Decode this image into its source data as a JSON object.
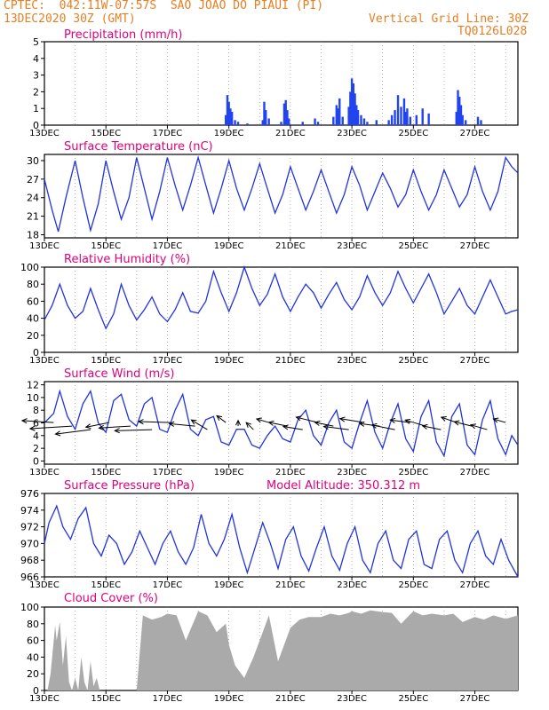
{
  "header": {
    "line1": "CPTEC:  042:11W-07:57S  SAO JOAO DO PIAUI (PI)",
    "line2": "13DEC2020 30Z (GMT)",
    "grid_note": "Vertical Grid Line: 30Z",
    "code": "TQ0126L028"
  },
  "colors": {
    "header": "#e67e22",
    "title": "#e0007a",
    "line": "#2233dd",
    "bar": "#2244ee",
    "cloud": "#aaaaaa",
    "grid": "#888888"
  },
  "x_ticks": [
    "13DEC",
    "15DEC",
    "17DEC",
    "19DEC",
    "21DEC",
    "23DEC",
    "25DEC",
    "27DEC"
  ],
  "x_tick_days": [
    0,
    2,
    4,
    6,
    8,
    10,
    12,
    14
  ],
  "x_range_days": [
    0,
    15.4
  ],
  "chart_data": [
    {
      "id": "precip",
      "type": "bar",
      "title": "Precipitation (mm/h)",
      "ylim": [
        0,
        5
      ],
      "yticks": [
        0,
        1,
        2,
        3,
        4,
        5
      ],
      "x_day": [
        5.9,
        5.95,
        6.0,
        6.05,
        6.1,
        6.2,
        6.3,
        6.6,
        7.1,
        7.15,
        7.2,
        7.3,
        7.7,
        7.8,
        7.85,
        7.9,
        7.95,
        8.4,
        8.8,
        8.9,
        9.4,
        9.5,
        9.55,
        9.6,
        9.7,
        9.9,
        9.95,
        10.0,
        10.05,
        10.1,
        10.15,
        10.2,
        10.3,
        10.4,
        10.5,
        10.8,
        11.2,
        11.3,
        11.4,
        11.5,
        11.6,
        11.7,
        11.75,
        11.8,
        11.9,
        12.1,
        12.3,
        12.5,
        13.4,
        13.45,
        13.5,
        13.55,
        13.6,
        13.7,
        14.1,
        14.2
      ],
      "values": [
        0.6,
        1.8,
        1.4,
        1.0,
        0.8,
        0.3,
        0.2,
        0.1,
        0.3,
        1.4,
        0.9,
        0.4,
        0.2,
        1.3,
        1.5,
        0.9,
        0.4,
        0.2,
        0.4,
        0.2,
        0.5,
        1.2,
        1.0,
        1.6,
        0.5,
        1.1,
        2.0,
        2.8,
        2.5,
        1.9,
        1.2,
        0.9,
        0.6,
        0.4,
        0.2,
        0.3,
        0.3,
        0.6,
        0.9,
        1.8,
        1.1,
        1.6,
        0.8,
        1.0,
        0.5,
        0.6,
        1.0,
        0.7,
        0.8,
        2.1,
        1.7,
        1.2,
        0.6,
        0.3,
        0.5,
        0.3
      ]
    },
    {
      "id": "temp",
      "type": "line",
      "title": "Surface Temperature (nC)",
      "ylim": [
        17.5,
        31
      ],
      "yticks": [
        18,
        21,
        24,
        27,
        30
      ],
      "x_day": [
        0,
        0.25,
        0.45,
        0.7,
        1.0,
        1.25,
        1.5,
        1.75,
        2.0,
        2.25,
        2.5,
        2.75,
        3.0,
        3.25,
        3.5,
        3.75,
        4.0,
        4.25,
        4.5,
        4.75,
        5.0,
        5.25,
        5.5,
        5.75,
        6.0,
        6.25,
        6.5,
        6.75,
        7.0,
        7.25,
        7.5,
        7.75,
        8.0,
        8.25,
        8.5,
        8.75,
        9.0,
        9.25,
        9.5,
        9.75,
        10.0,
        10.25,
        10.5,
        10.75,
        11.0,
        11.25,
        11.5,
        11.75,
        12.0,
        12.25,
        12.5,
        12.75,
        13.0,
        13.25,
        13.5,
        13.75,
        14.0,
        14.25,
        14.5,
        14.75,
        15.0,
        15.2,
        15.4
      ],
      "values": [
        27.0,
        22.0,
        18.5,
        24.0,
        30.0,
        24.0,
        18.7,
        23.0,
        30.0,
        25.0,
        20.5,
        24.0,
        30.5,
        25.5,
        20.5,
        25.0,
        30.5,
        26.0,
        22.0,
        26.0,
        30.5,
        26.0,
        21.5,
        25.5,
        30.0,
        25.5,
        22.0,
        25.5,
        29.5,
        25.5,
        21.5,
        24.5,
        29.0,
        25.5,
        22.0,
        25.0,
        28.5,
        25.0,
        21.5,
        24.5,
        29.0,
        26.0,
        22.0,
        25.0,
        28.0,
        25.5,
        22.5,
        24.5,
        28.5,
        25.0,
        22.0,
        24.5,
        28.5,
        25.5,
        22.5,
        24.5,
        29.0,
        25.0,
        22.0,
        25.0,
        30.5,
        29.0,
        28.0
      ]
    },
    {
      "id": "rh",
      "type": "line",
      "title": "Relative Humidity (%)",
      "ylim": [
        0,
        100
      ],
      "yticks": [
        0,
        20,
        40,
        60,
        80,
        100
      ],
      "x_day": [
        0,
        0.25,
        0.5,
        0.75,
        1.0,
        1.25,
        1.5,
        1.75,
        2.0,
        2.25,
        2.5,
        2.75,
        3.0,
        3.25,
        3.5,
        3.75,
        4.0,
        4.25,
        4.5,
        4.75,
        5.0,
        5.25,
        5.5,
        5.75,
        6.0,
        6.25,
        6.5,
        6.75,
        7.0,
        7.25,
        7.5,
        7.75,
        8.0,
        8.25,
        8.5,
        8.75,
        9.0,
        9.25,
        9.5,
        9.75,
        10.0,
        10.25,
        10.5,
        10.75,
        11.0,
        11.25,
        11.5,
        11.75,
        12.0,
        12.25,
        12.5,
        12.75,
        13.0,
        13.25,
        13.5,
        13.75,
        14.0,
        14.25,
        14.5,
        14.75,
        15.0,
        15.2,
        15.4
      ],
      "values": [
        38,
        55,
        80,
        55,
        40,
        48,
        75,
        50,
        28,
        45,
        80,
        55,
        38,
        50,
        65,
        45,
        36,
        50,
        70,
        48,
        46,
        60,
        95,
        70,
        48,
        70,
        100,
        75,
        55,
        68,
        92,
        65,
        48,
        65,
        80,
        70,
        52,
        68,
        82,
        62,
        50,
        65,
        90,
        70,
        55,
        70,
        95,
        75,
        58,
        75,
        92,
        70,
        45,
        60,
        75,
        55,
        45,
        65,
        85,
        65,
        45,
        48,
        50
      ]
    },
    {
      "id": "wind",
      "type": "line",
      "title": "Surface Wind (m/s)",
      "ylim": [
        -0.5,
        12.5
      ],
      "yticks": [
        0,
        2,
        4,
        6,
        8,
        10,
        12
      ],
      "x_day": [
        0,
        0.3,
        0.5,
        0.75,
        1.0,
        1.25,
        1.5,
        1.75,
        2.0,
        2.25,
        2.5,
        2.75,
        3.0,
        3.25,
        3.5,
        3.75,
        4.0,
        4.25,
        4.5,
        4.75,
        5.0,
        5.25,
        5.5,
        5.75,
        6.0,
        6.25,
        6.5,
        6.75,
        7.0,
        7.25,
        7.5,
        7.75,
        8.0,
        8.25,
        8.5,
        8.75,
        9.0,
        9.25,
        9.5,
        9.75,
        10.0,
        10.25,
        10.5,
        10.75,
        11.0,
        11.25,
        11.5,
        11.75,
        12.0,
        12.25,
        12.5,
        12.75,
        13.0,
        13.25,
        13.5,
        13.75,
        14.0,
        14.25,
        14.5,
        14.75,
        15.0,
        15.2,
        15.4
      ],
      "values": [
        6.0,
        7.5,
        11.0,
        7.0,
        5.0,
        9.0,
        11.0,
        6.0,
        4.5,
        9.5,
        10.5,
        6.5,
        5.5,
        9.0,
        10.0,
        5.0,
        4.5,
        8.0,
        10.5,
        5.0,
        4.0,
        6.5,
        7.0,
        3.0,
        2.5,
        5.0,
        5.0,
        2.5,
        2.0,
        4.0,
        5.5,
        3.5,
        3.0,
        6.5,
        8.0,
        4.0,
        2.5,
        6.0,
        8.0,
        3.0,
        2.0,
        6.0,
        9.5,
        4.5,
        2.0,
        6.0,
        9.0,
        3.5,
        1.5,
        7.0,
        9.5,
        3.0,
        0.8,
        7.0,
        9.0,
        2.5,
        1.0,
        6.5,
        9.5,
        3.5,
        1.0,
        4.0,
        2.5
      ]
    },
    {
      "id": "pres",
      "type": "line",
      "title": "Surface Pressure (hPa)",
      "note": "Model Altitude: 350.312 m",
      "ylim": [
        966,
        976
      ],
      "yticks": [
        966,
        968,
        970,
        972,
        974,
        976
      ],
      "x_day": [
        0,
        0.15,
        0.4,
        0.6,
        0.85,
        1.1,
        1.35,
        1.6,
        1.85,
        2.1,
        2.35,
        2.6,
        2.85,
        3.1,
        3.35,
        3.6,
        3.85,
        4.1,
        4.35,
        4.6,
        4.85,
        5.1,
        5.35,
        5.6,
        5.85,
        6.1,
        6.35,
        6.6,
        6.85,
        7.1,
        7.35,
        7.6,
        7.85,
        8.1,
        8.35,
        8.6,
        8.85,
        9.1,
        9.35,
        9.6,
        9.85,
        10.1,
        10.35,
        10.6,
        10.85,
        11.1,
        11.35,
        11.6,
        11.85,
        12.1,
        12.35,
        12.6,
        12.85,
        13.1,
        13.35,
        13.6,
        13.85,
        14.1,
        14.35,
        14.6,
        14.85,
        15.1,
        15.4
      ],
      "values": [
        970.0,
        972.5,
        974.5,
        972.0,
        970.5,
        973.0,
        974.3,
        970.0,
        968.5,
        971.0,
        970.0,
        967.5,
        969.0,
        971.5,
        969.5,
        967.5,
        970.0,
        971.5,
        969.0,
        967.5,
        969.5,
        973.5,
        970.0,
        968.5,
        970.5,
        973.5,
        969.5,
        966.5,
        969.5,
        972.5,
        970.0,
        967.0,
        970.5,
        972.0,
        968.5,
        966.7,
        969.5,
        972.0,
        968.5,
        966.8,
        970.0,
        972.0,
        968.0,
        966.5,
        970.0,
        971.5,
        968.0,
        967.0,
        970.5,
        971.5,
        967.5,
        967.0,
        970.5,
        971.5,
        968.0,
        966.5,
        970.0,
        971.5,
        968.5,
        967.5,
        970.5,
        968.0,
        966.0
      ]
    },
    {
      "id": "cloud",
      "type": "area",
      "title": "Cloud Cover (%)",
      "ylim": [
        0,
        100
      ],
      "yticks": [
        0,
        20,
        40,
        60,
        80,
        100
      ],
      "x_day": [
        0,
        0.1,
        0.2,
        0.35,
        0.4,
        0.5,
        0.6,
        0.7,
        0.8,
        0.9,
        1.0,
        1.1,
        1.2,
        1.3,
        1.4,
        1.5,
        1.6,
        1.7,
        1.8,
        1.9,
        2.0,
        2.1,
        2.2,
        2.3,
        2.4,
        2.5,
        2.6,
        2.7,
        2.8,
        2.9,
        3.0,
        3.2,
        3.5,
        3.8,
        4.0,
        4.3,
        4.6,
        5.0,
        5.3,
        5.6,
        5.9,
        6.0,
        6.2,
        6.5,
        6.8,
        7.0,
        7.3,
        7.6,
        8.0,
        8.3,
        8.6,
        9.0,
        9.3,
        9.6,
        9.9,
        10.0,
        10.3,
        10.6,
        11.0,
        11.3,
        11.6,
        12.0,
        12.3,
        12.6,
        13.0,
        13.3,
        13.6,
        14.0,
        14.3,
        14.6,
        15.0,
        15.4
      ],
      "values": [
        0,
        0,
        20,
        78,
        60,
        82,
        30,
        65,
        10,
        0,
        15,
        0,
        40,
        10,
        0,
        35,
        5,
        15,
        0,
        0,
        0,
        0,
        0,
        0,
        0,
        0,
        0,
        0,
        0,
        0,
        0,
        90,
        85,
        88,
        92,
        90,
        60,
        95,
        90,
        70,
        80,
        55,
        30,
        15,
        40,
        60,
        90,
        35,
        75,
        85,
        88,
        88,
        92,
        90,
        93,
        95,
        92,
        96,
        94,
        93,
        80,
        95,
        90,
        92,
        90,
        92,
        82,
        88,
        85,
        90,
        86,
        90
      ]
    }
  ],
  "wind_arrows": {
    "x_day": [
      0.3,
      0.9,
      1.5,
      2.1,
      2.8,
      3.5,
      4.1,
      4.9,
      5.3,
      5.9,
      6.3,
      6.8,
      7.3,
      7.9,
      8.4,
      8.9,
      9.4,
      9.9,
      10.4,
      10.9,
      11.4,
      11.9,
      12.4,
      12.9,
      13.4,
      13.9,
      14.4,
      15.0
    ],
    "speed": [
      6,
      8,
      7,
      5,
      6,
      7,
      6,
      5,
      6,
      4,
      3,
      4,
      3,
      4,
      4,
      5,
      4,
      5,
      5,
      4,
      5,
      4,
      5,
      4,
      4,
      4,
      4,
      3
    ],
    "dir_deg": [
      170,
      190,
      200,
      210,
      190,
      185,
      175,
      165,
      120,
      115,
      90,
      110,
      140,
      150,
      155,
      145,
      150,
      160,
      155,
      160,
      150,
      160,
      140,
      150,
      135,
      145,
      140,
      140
    ]
  }
}
